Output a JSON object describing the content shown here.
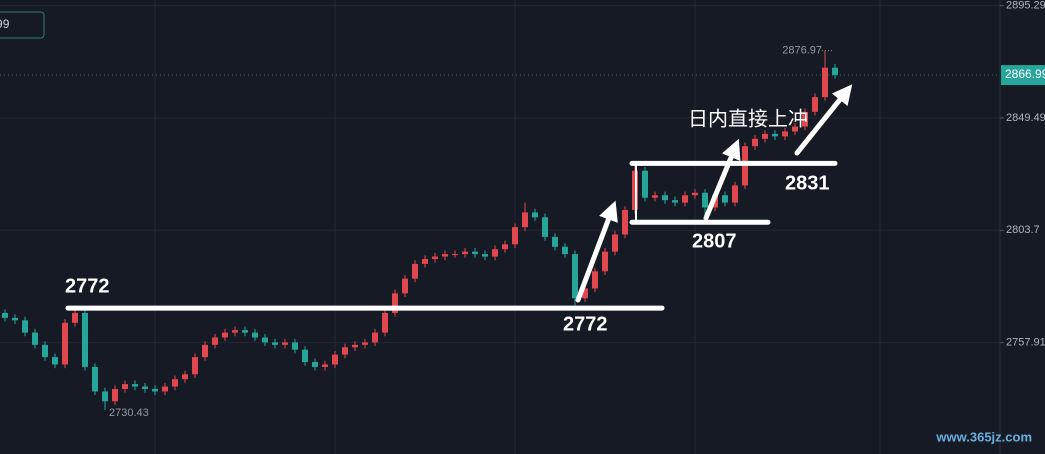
{
  "chart_data": {
    "type": "candlestick",
    "up_color": "#e0474f",
    "down_color": "#26a69a",
    "ylim": [
      2712.5,
      2897.6
    ],
    "yticks": [
      2895.29,
      2849.49,
      2803.7,
      2757.91
    ],
    "grid": true,
    "ohlc": [
      [
        2770,
        2771.5,
        2766.5,
        2768
      ],
      [
        2768,
        2769.5,
        2765.5,
        2767
      ],
      [
        2767,
        2768.5,
        2760.5,
        2762
      ],
      [
        2762,
        2763.5,
        2755.5,
        2757
      ],
      [
        2757,
        2758.5,
        2750.5,
        2752
      ],
      [
        2752,
        2753.5,
        2747.5,
        2749
      ],
      [
        2749,
        2767.5,
        2747.5,
        2766
      ],
      [
        2766,
        2773,
        2764.5,
        2770
      ],
      [
        2770,
        2771.5,
        2746.5,
        2748
      ],
      [
        2748,
        2749.5,
        2736.5,
        2738
      ],
      [
        2738,
        2739.5,
        2730.43,
        2734
      ],
      [
        2734,
        2740.5,
        2732.5,
        2739
      ],
      [
        2739,
        2742.5,
        2737.5,
        2741
      ],
      [
        2741,
        2742.5,
        2738.5,
        2740
      ],
      [
        2740,
        2741.5,
        2737.5,
        2739
      ],
      [
        2739,
        2740.5,
        2736.5,
        2738
      ],
      [
        2738,
        2741.5,
        2736.5,
        2740
      ],
      [
        2740,
        2744.5,
        2738.5,
        2743
      ],
      [
        2743,
        2746.5,
        2741.5,
        2745
      ],
      [
        2745,
        2753.5,
        2743.5,
        2752
      ],
      [
        2752,
        2758.5,
        2750.5,
        2757
      ],
      [
        2757,
        2761.5,
        2755.5,
        2760
      ],
      [
        2760,
        2763.5,
        2758.5,
        2762
      ],
      [
        2762,
        2764.5,
        2760.5,
        2763
      ],
      [
        2763,
        2764.5,
        2760.5,
        2762
      ],
      [
        2762,
        2763.5,
        2758.5,
        2760
      ],
      [
        2760,
        2761.5,
        2756.5,
        2758
      ],
      [
        2758,
        2759.5,
        2755.5,
        2757
      ],
      [
        2757,
        2759.5,
        2755.5,
        2758
      ],
      [
        2758,
        2759.5,
        2753.5,
        2755
      ],
      [
        2755,
        2756.5,
        2748.5,
        2750
      ],
      [
        2750,
        2751.5,
        2746.5,
        2748
      ],
      [
        2748,
        2750.5,
        2746.5,
        2749
      ],
      [
        2749,
        2754.5,
        2747.5,
        2753
      ],
      [
        2753,
        2757.5,
        2751.5,
        2756
      ],
      [
        2756,
        2758.5,
        2754.5,
        2757
      ],
      [
        2757,
        2759.5,
        2755.5,
        2758
      ],
      [
        2758,
        2763.5,
        2756.5,
        2762
      ],
      [
        2762,
        2771.5,
        2760.5,
        2770
      ],
      [
        2770,
        2779.5,
        2768.5,
        2778
      ],
      [
        2778,
        2785.5,
        2776.5,
        2784
      ],
      [
        2784,
        2791.5,
        2782.5,
        2790
      ],
      [
        2790,
        2793.5,
        2788.5,
        2792
      ],
      [
        2792,
        2794.5,
        2790.5,
        2793
      ],
      [
        2793,
        2795.5,
        2791.5,
        2794
      ],
      [
        2794,
        2795.5,
        2792.5,
        2794
      ],
      [
        2794,
        2796.5,
        2792.5,
        2795
      ],
      [
        2795,
        2796.5,
        2792.5,
        2794
      ],
      [
        2794,
        2795.5,
        2791.5,
        2793
      ],
      [
        2793,
        2797.5,
        2791.5,
        2796
      ],
      [
        2796,
        2799.5,
        2794.5,
        2798
      ],
      [
        2798,
        2806.5,
        2796.5,
        2805
      ],
      [
        2805,
        2815,
        2803.5,
        2811
      ],
      [
        2811,
        2812.5,
        2807.5,
        2809
      ],
      [
        2809,
        2810.5,
        2799.5,
        2801
      ],
      [
        2801,
        2802.5,
        2795.5,
        2797
      ],
      [
        2797,
        2798.5,
        2792.5,
        2794
      ],
      [
        2794,
        2795.5,
        2772,
        2776
      ],
      [
        2776,
        2781.5,
        2774.5,
        2780
      ],
      [
        2780,
        2788.5,
        2778.5,
        2787
      ],
      [
        2787,
        2796.5,
        2785.5,
        2795
      ],
      [
        2795,
        2803.5,
        2793.5,
        2802
      ],
      [
        2802,
        2813.5,
        2800.5,
        2812
      ],
      [
        2812,
        2831,
        2810.5,
        2828
      ],
      [
        2828,
        2829.5,
        2815.5,
        2817
      ],
      [
        2817,
        2819.5,
        2815.5,
        2818
      ],
      [
        2818,
        2819.5,
        2814.5,
        2816
      ],
      [
        2816,
        2817.5,
        2813.5,
        2815
      ],
      [
        2815,
        2819.5,
        2813.5,
        2818
      ],
      [
        2818,
        2820.5,
        2816.5,
        2819
      ],
      [
        2819,
        2820.5,
        2807,
        2813
      ],
      [
        2813,
        2819.5,
        2811.5,
        2818
      ],
      [
        2818,
        2819.5,
        2813.5,
        2815
      ],
      [
        2815,
        2823.5,
        2813.5,
        2822
      ],
      [
        2822,
        2839.5,
        2820.5,
        2838
      ],
      [
        2838,
        2842.5,
        2836.5,
        2841
      ],
      [
        2841,
        2844.5,
        2839.5,
        2843
      ],
      [
        2843,
        2844.5,
        2840.5,
        2842
      ],
      [
        2842,
        2845.5,
        2840.5,
        2844
      ],
      [
        2844,
        2847.5,
        2842.5,
        2846
      ],
      [
        2846,
        2853.5,
        2844.5,
        2852
      ],
      [
        2852,
        2859.5,
        2850.5,
        2858
      ],
      [
        2858,
        2876.97,
        2856.5,
        2870
      ],
      [
        2870,
        2871.5,
        2865.5,
        2866.99
      ]
    ],
    "levels": [
      2772,
      2807,
      2831
    ],
    "note": "日内直接上冲",
    "watermark": "www.365jz.com"
  }
}
